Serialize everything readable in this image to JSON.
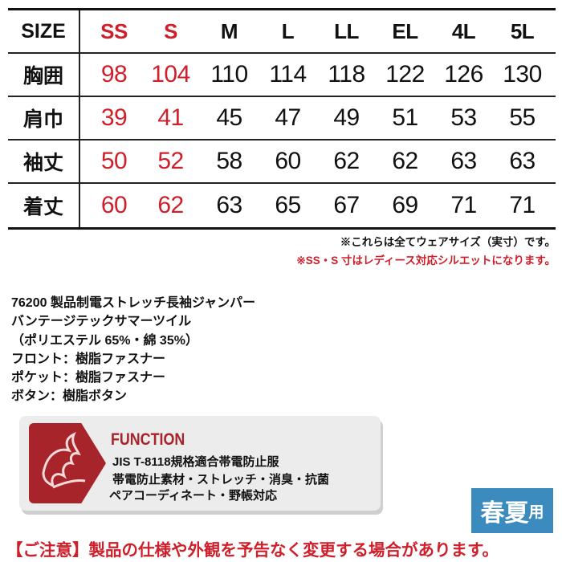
{
  "table": {
    "header": {
      "label": "SIZE",
      "sizes": [
        "SS",
        "S",
        "M",
        "L",
        "LL",
        "EL",
        "4L",
        "5L"
      ]
    },
    "rows": [
      {
        "label": "胸囲",
        "values": [
          "98",
          "104",
          "110",
          "114",
          "118",
          "122",
          "126",
          "130"
        ]
      },
      {
        "label": "肩巾",
        "values": [
          "39",
          "41",
          "45",
          "47",
          "49",
          "51",
          "53",
          "55"
        ]
      },
      {
        "label": "袖丈",
        "values": [
          "50",
          "52",
          "58",
          "60",
          "62",
          "62",
          "63",
          "63"
        ]
      },
      {
        "label": "着丈",
        "values": [
          "60",
          "62",
          "63",
          "65",
          "67",
          "69",
          "71",
          "71"
        ]
      }
    ]
  },
  "notes": {
    "wear_size": "※これらは全てウェアサイズ（実寸）です。",
    "ladies": "※SS・S 寸はレディース対応シルエットになります。"
  },
  "description": [
    "76200 製品制電ストレッチ長袖ジャンパー",
    "バンテージテックサマーツイル",
    "（ポリエステル 65%・綿 35%）",
    "フロント：樹脂ファスナー",
    "ポケット：樹脂ファスナー",
    "ボタン：樹脂ボタン"
  ],
  "function": {
    "title": "FUNCTION",
    "lines": [
      "JIS T-8118規格適合帯電防止服",
      "帯電防止素材・ストレッチ・消臭・抗菌",
      "ペアコーディネート・野帳対応"
    ],
    "icon": "dragon-icon"
  },
  "season": {
    "main": "春夏",
    "suffix": "用"
  },
  "caution": "【ご注意】製品の仕様や外観を予告なく変更する場合があります。",
  "colors": {
    "red": "#cf1f2a",
    "function_red": "#a8242b",
    "season_blue": "#3b8bbf"
  }
}
